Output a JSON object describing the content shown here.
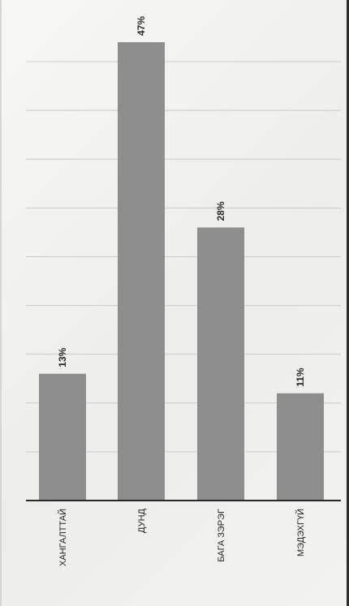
{
  "chart_data": {
    "type": "bar",
    "orientation": "vertical, page rotated 90°",
    "categories": [
      "ХАНГАЛТТАЙ",
      "ДУНД",
      "БАГА ЗЭРЭГ",
      "МЭДЭХГҮЙ"
    ],
    "values": [
      13,
      47,
      28,
      11
    ],
    "data_labels": [
      "13%",
      "47%",
      "28%",
      "11%"
    ],
    "value_unit": "%",
    "ylim": [
      0,
      50
    ],
    "grid": true,
    "legend": "none",
    "bar_color": "#8e8e8e"
  }
}
